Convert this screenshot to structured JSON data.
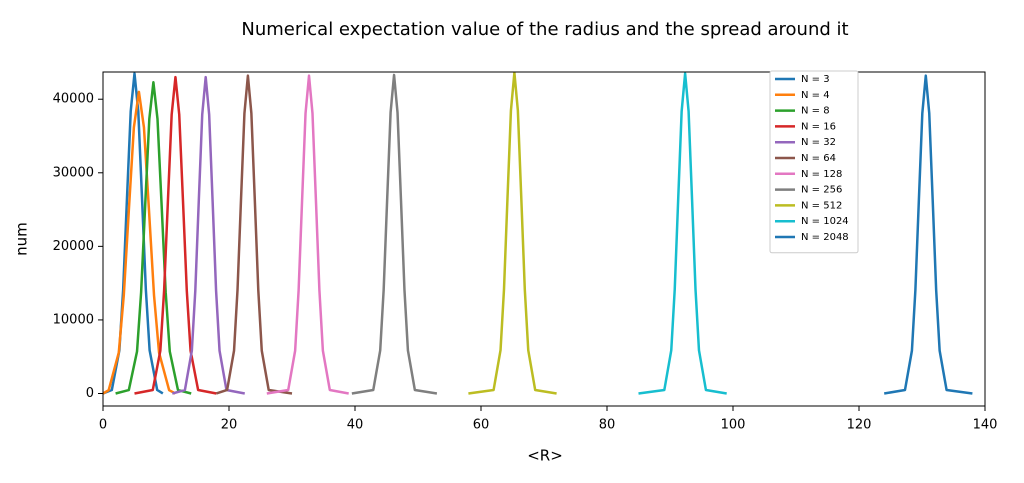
{
  "chart_data": {
    "type": "line",
    "title": "Numerical expectation value of the radius and the spread around it",
    "xlabel": "<R>",
    "ylabel": "num",
    "xlim": [
      0,
      140
    ],
    "ylim": [
      -1700,
      43700
    ],
    "xticks": [
      0,
      20,
      40,
      60,
      80,
      100,
      120,
      140
    ],
    "yticks": [
      0,
      10000,
      20000,
      30000,
      40000
    ],
    "grid": false,
    "legend": "upper right",
    "series": [
      {
        "name": "N = 3",
        "color": "#1f77b4",
        "x": [
          0,
          1.4,
          2.6,
          3.2,
          3.8,
          4.4,
          5,
          5.6,
          6.2,
          6.8,
          7.4,
          8.6,
          9.5
        ],
        "values": [
          0,
          480,
          5870,
          14140,
          26400,
          38370,
          43500,
          38370,
          26400,
          14140,
          5870,
          480,
          0
        ]
      },
      {
        "name": "N = 4",
        "color": "#ff7f0e",
        "x": [
          0,
          0.9,
          2.5,
          3.3,
          4.1,
          4.9,
          5.7,
          6.5,
          7.3,
          8.1,
          8.9,
          10.5,
          11.5
        ],
        "values": [
          0,
          450,
          5540,
          13330,
          24890,
          36160,
          41000,
          36160,
          24890,
          13330,
          5540,
          450,
          0
        ]
      },
      {
        "name": "N = 8",
        "color": "#2ca02c",
        "x": [
          2,
          4.1,
          5.4,
          6.05,
          6.7,
          7.35,
          8,
          8.65,
          9.3,
          9.95,
          10.6,
          11.9,
          14
        ],
        "values": [
          0,
          470,
          5710,
          13750,
          25680,
          37310,
          42300,
          37310,
          25680,
          13750,
          5710,
          470,
          0
        ]
      },
      {
        "name": "N = 16",
        "color": "#d62728",
        "x": [
          5,
          7.9,
          9.1,
          9.7,
          10.3,
          10.9,
          11.5,
          12.1,
          12.7,
          13.3,
          13.9,
          15.1,
          18
        ],
        "values": [
          0,
          470,
          5810,
          13980,
          26100,
          37930,
          43000,
          37930,
          26100,
          13980,
          5810,
          470,
          0
        ]
      },
      {
        "name": "N = 32",
        "color": "#9467bd",
        "x": [
          11,
          13,
          14.1,
          14.65,
          15.2,
          15.75,
          16.3,
          16.85,
          17.4,
          17.95,
          18.5,
          19.6,
          22.5
        ],
        "values": [
          0,
          470,
          5810,
          13980,
          26100,
          37930,
          43000,
          37930,
          26100,
          13980,
          5810,
          470,
          0
        ]
      },
      {
        "name": "N = 64",
        "color": "#8c564b",
        "x": [
          18,
          19.7,
          20.8,
          21.35,
          21.9,
          22.45,
          23,
          23.55,
          24.1,
          24.65,
          25.2,
          26.3,
          30
        ],
        "values": [
          0,
          480,
          5830,
          14040,
          26220,
          38100,
          43200,
          38100,
          26220,
          14040,
          5830,
          480,
          0
        ]
      },
      {
        "name": "N = 128",
        "color": "#e377c2",
        "x": [
          26,
          29.4,
          30.5,
          31.05,
          31.6,
          32.15,
          32.7,
          33.25,
          33.8,
          34.35,
          34.9,
          36,
          39
        ],
        "values": [
          0,
          480,
          5830,
          14040,
          26220,
          38100,
          43200,
          38100,
          26220,
          14040,
          5830,
          480,
          0
        ]
      },
      {
        "name": "N = 256",
        "color": "#7f7f7f",
        "x": [
          39.5,
          42.9,
          44,
          44.55,
          45.1,
          45.65,
          46.2,
          46.75,
          47.3,
          47.85,
          48.4,
          49.5,
          53
        ],
        "values": [
          0,
          480,
          5850,
          14070,
          26280,
          38190,
          43300,
          38190,
          26280,
          14070,
          5850,
          480,
          0
        ]
      },
      {
        "name": "N = 512",
        "color": "#bcbd22",
        "x": [
          58,
          62,
          63.1,
          63.65,
          64.2,
          64.75,
          65.3,
          65.85,
          66.4,
          66.95,
          67.5,
          68.6,
          72
        ],
        "values": [
          0,
          480,
          5890,
          14170,
          26470,
          38460,
          43600,
          38460,
          26470,
          14170,
          5890,
          480,
          0
        ]
      },
      {
        "name": "N = 1024",
        "color": "#17becf",
        "x": [
          85,
          89.1,
          90.2,
          90.75,
          91.3,
          91.85,
          92.4,
          92.95,
          93.5,
          94.05,
          94.6,
          95.7,
          99
        ],
        "values": [
          0,
          480,
          5870,
          14140,
          26400,
          38370,
          43500,
          38370,
          26400,
          14140,
          5870,
          480,
          0
        ]
      },
      {
        "name": "N = 2048",
        "color": "#1f77b4",
        "x": [
          124,
          127.3,
          128.4,
          128.95,
          129.5,
          130.05,
          130.6,
          131.15,
          131.7,
          132.25,
          132.8,
          133.9,
          138
        ],
        "values": [
          0,
          480,
          5830,
          14040,
          26220,
          38100,
          43200,
          38100,
          26220,
          14040,
          5830,
          480,
          0
        ]
      }
    ]
  }
}
